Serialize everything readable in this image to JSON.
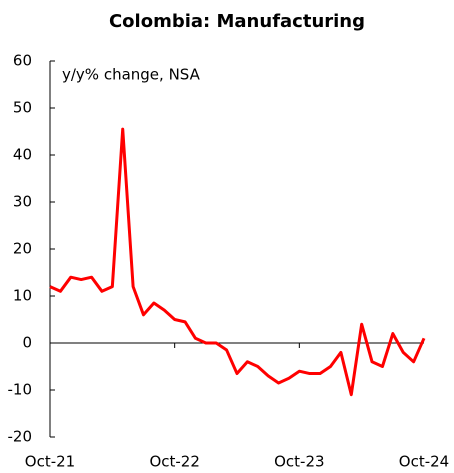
{
  "chart_data": {
    "type": "line",
    "title": "Colombia: Manufacturing",
    "annotation": "y/y% change, NSA",
    "categories": [
      "Oct-21",
      null,
      null,
      null,
      null,
      null,
      null,
      null,
      null,
      null,
      null,
      null,
      "Oct-22",
      null,
      null,
      null,
      null,
      null,
      null,
      null,
      null,
      null,
      null,
      null,
      "Oct-23",
      null,
      null,
      null,
      null,
      null,
      null,
      null,
      null,
      null,
      null,
      null,
      "Oct-24"
    ],
    "series": [
      {
        "name": "Manufacturing",
        "color": "#ff0000",
        "values": [
          12,
          11,
          14,
          13.5,
          14,
          11,
          12,
          45.5,
          12,
          6,
          8.5,
          7,
          5,
          4.5,
          1,
          0,
          0,
          -1.5,
          -6.5,
          -4,
          -5,
          -7,
          -8.5,
          -7.5,
          -6,
          -6.5,
          -6.5,
          -5,
          -2,
          -11,
          4,
          -4,
          -5,
          2,
          -2,
          -4,
          1
        ]
      }
    ],
    "ylim": [
      -20,
      60
    ],
    "yticks": [
      -20,
      -10,
      0,
      10,
      20,
      30,
      40,
      50,
      60
    ],
    "grid": false
  }
}
